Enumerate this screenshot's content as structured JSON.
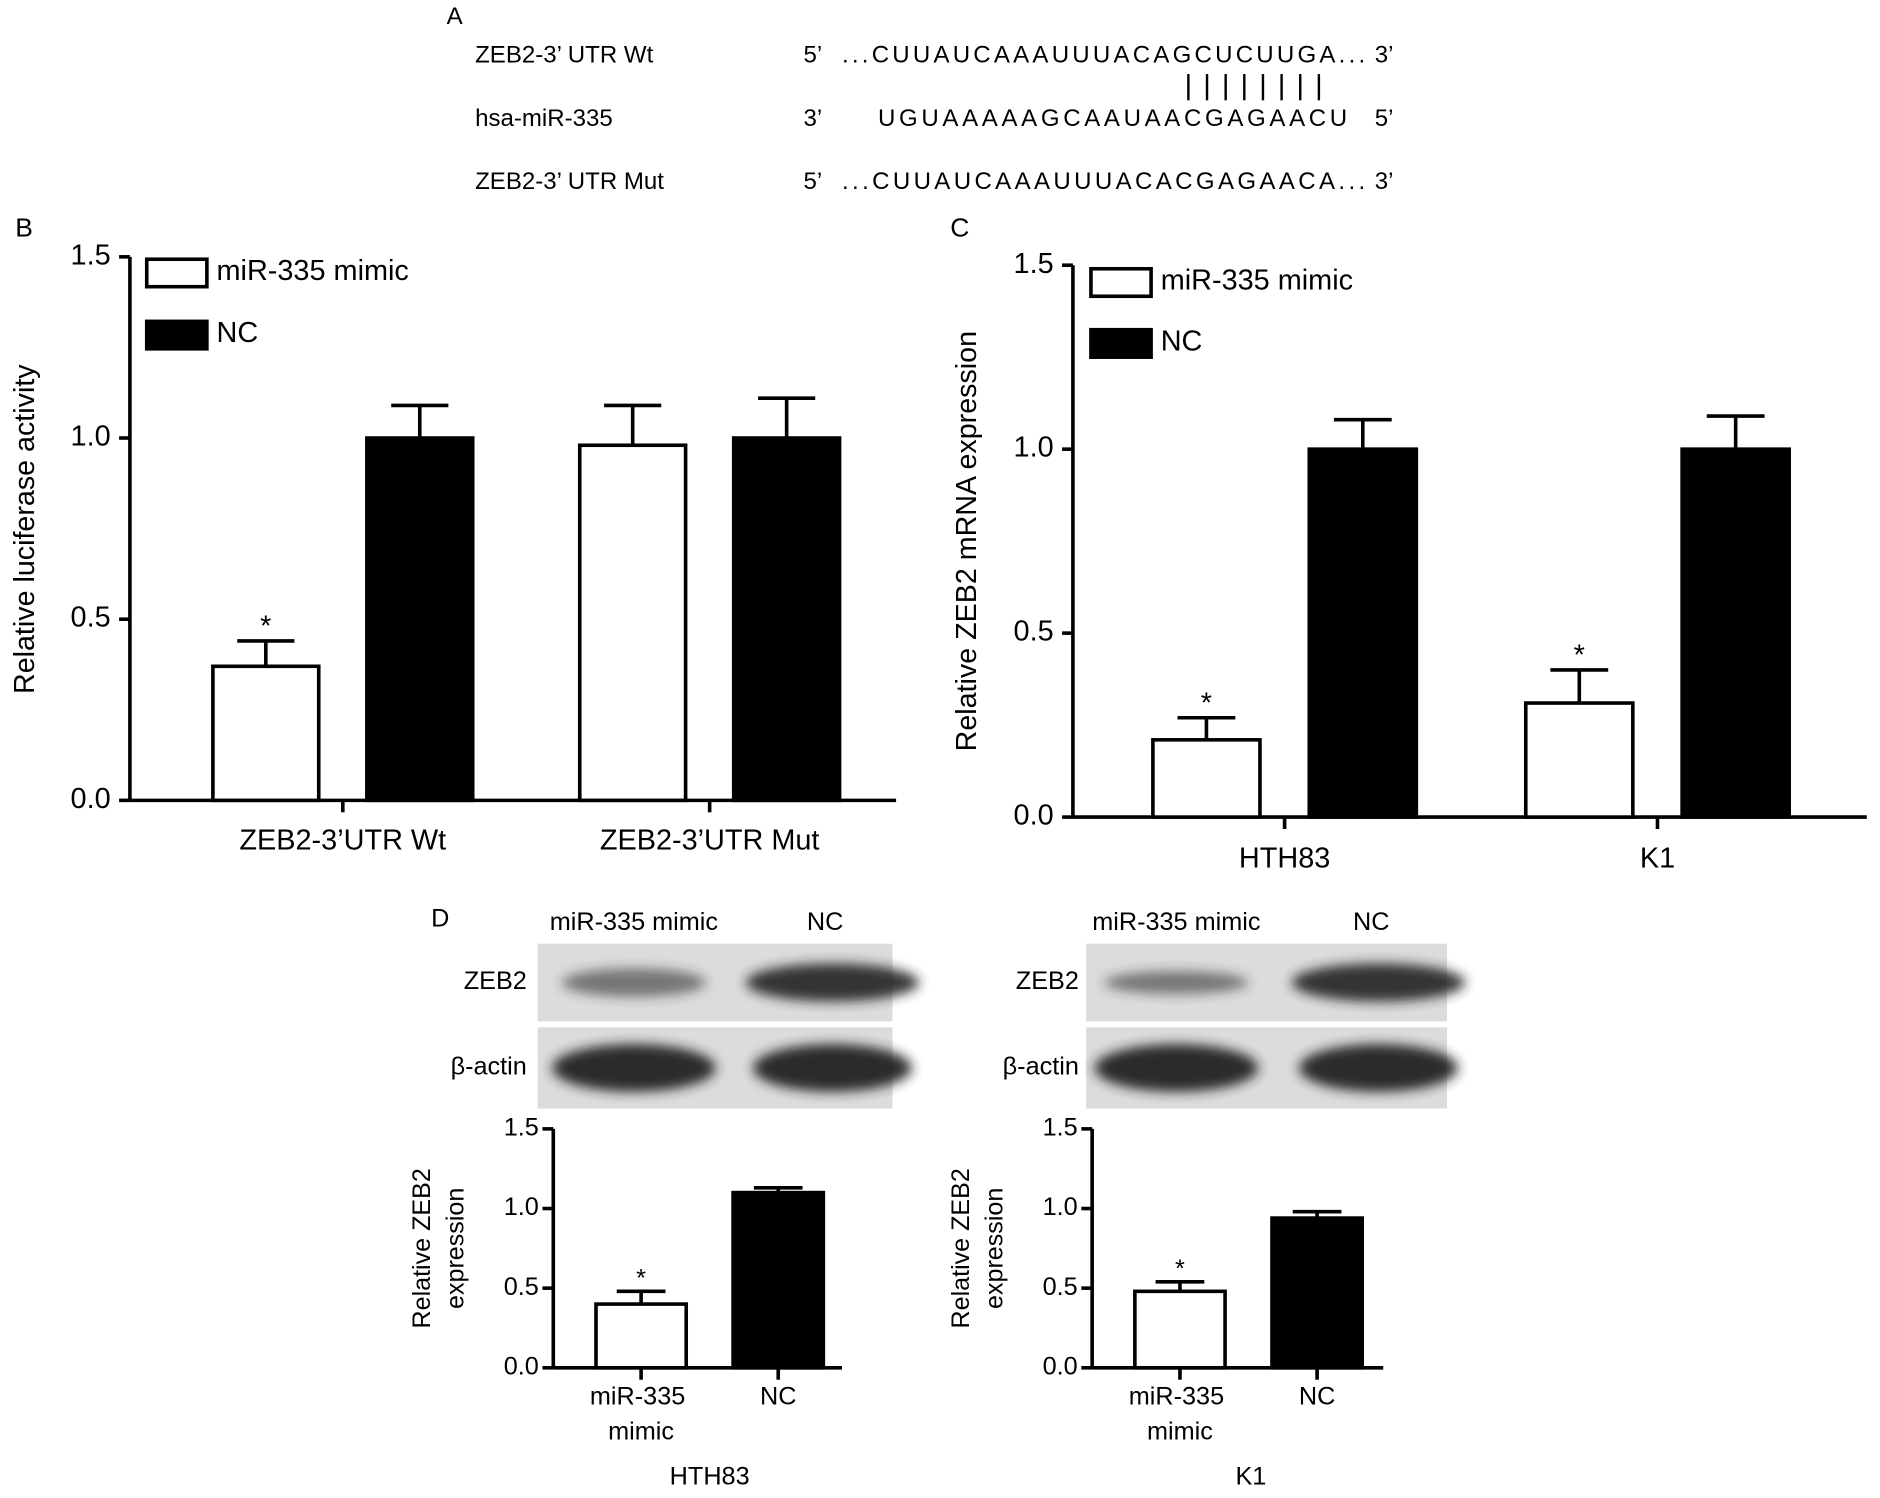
{
  "panel_a": {
    "label": "A",
    "rows": [
      {
        "name": "ZEB2-3’ UTR Wt",
        "end5": "5’",
        "seq": "...CUUAUCAAAUUUACAGCUCUUGA...",
        "end3": "3’"
      },
      {
        "name": "hsa-miR-335",
        "end5": "3’",
        "seq": "UGUAAAAAGCAAUAACGAGAACU",
        "end3": "5’"
      },
      {
        "name": "ZEB2-3’ UTR Mut",
        "end5": "5’",
        "seq": "...CUUAUCAAAUUUACACGAGAACA...",
        "end3": "3’"
      }
    ]
  },
  "panel_d": {
    "label": "D",
    "blots": [
      {
        "lanes": [
          "miR-335 mimic",
          "NC"
        ],
        "rows": [
          "ZEB2",
          "β-actin"
        ]
      },
      {
        "lanes": [
          "miR-335 mimic",
          "NC"
        ],
        "rows": [
          "ZEB2",
          "β-actin"
        ]
      }
    ]
  },
  "chart_data": [
    {
      "type": "bar",
      "panel": "B",
      "ylabel": "Relative luciferase activity",
      "categories": [
        "ZEB2-3’UTR Wt",
        "ZEB2-3’UTR Mut"
      ],
      "series": [
        {
          "name": "miR-335 mimic",
          "color": "#ffffff",
          "values": [
            0.37,
            0.98
          ],
          "errors": [
            0.07,
            0.11
          ],
          "significance": [
            "*",
            null
          ]
        },
        {
          "name": "NC",
          "color": "#000000",
          "values": [
            1.0,
            1.0
          ],
          "errors": [
            0.09,
            0.11
          ],
          "significance": [
            null,
            null
          ]
        }
      ],
      "ylim": [
        0,
        1.5
      ],
      "yticks": [
        {
          "value": 0,
          "label": "0.0"
        },
        {
          "value": 0.5,
          "label": "0.5"
        },
        {
          "value": 1,
          "label": "1.0"
        },
        {
          "value": 1.5,
          "label": "1.5"
        }
      ]
    },
    {
      "type": "bar",
      "panel": "C",
      "ylabel": "Relative ZEB2 mRNA expression",
      "categories": [
        "HTH83",
        "K1"
      ],
      "series": [
        {
          "name": "miR-335 mimic",
          "color": "#ffffff",
          "values": [
            0.21,
            0.31
          ],
          "errors": [
            0.06,
            0.09
          ],
          "significance": [
            "*",
            "*"
          ]
        },
        {
          "name": "NC",
          "color": "#000000",
          "values": [
            1.0,
            1.0
          ],
          "errors": [
            0.08,
            0.09
          ],
          "significance": [
            null,
            null
          ]
        }
      ],
      "ylim": [
        0,
        1.5
      ],
      "yticks": [
        {
          "value": 0,
          "label": "0.0"
        },
        {
          "value": 0.5,
          "label": "0.5"
        },
        {
          "value": 1,
          "label": "1.0"
        },
        {
          "value": 1.5,
          "label": "1.5"
        }
      ]
    },
    {
      "type": "bar",
      "ylabel": [
        "Relative ZEB2",
        "expression"
      ],
      "xlabel": "HTH83",
      "categories": [
        "miR-335 mimic",
        "NC"
      ],
      "values": [
        0.4,
        1.1
      ],
      "errors": [
        0.08,
        0.03
      ],
      "colors": [
        "#ffffff",
        "#000000"
      ],
      "significance": [
        "*",
        null
      ],
      "ylim": [
        0,
        1.5
      ],
      "yticks": [
        {
          "value": 0,
          "label": "0.0"
        },
        {
          "value": 0.5,
          "label": "0.5"
        },
        {
          "value": 1,
          "label": "1.0"
        },
        {
          "value": 1.5,
          "label": "1.5"
        }
      ]
    },
    {
      "type": "bar",
      "ylabel": [
        "Relative ZEB2",
        "expression"
      ],
      "xlabel": "K1",
      "categories": [
        "miR-335 mimic",
        "NC"
      ],
      "values": [
        0.48,
        0.94
      ],
      "errors": [
        0.06,
        0.04
      ],
      "colors": [
        "#ffffff",
        "#000000"
      ],
      "significance": [
        "*",
        null
      ],
      "ylim": [
        0,
        1.5
      ],
      "yticks": [
        {
          "value": 0,
          "label": "0.0"
        },
        {
          "value": 0.5,
          "label": "0.5"
        },
        {
          "value": 1,
          "label": "1.0"
        },
        {
          "value": 1.5,
          "label": "1.5"
        }
      ]
    }
  ]
}
